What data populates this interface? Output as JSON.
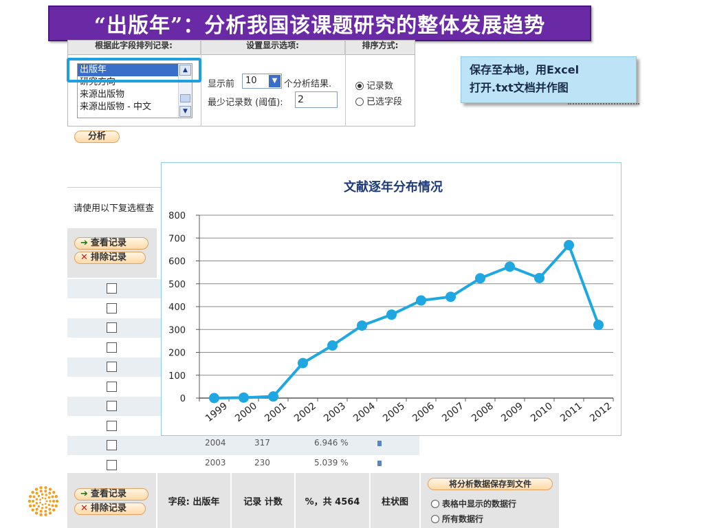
{
  "slide": {
    "title": "“出版年”：分析我国该课题研究的整体发展趋势"
  },
  "panel": {
    "col1_header": "根据此字段排列记录:",
    "col2_header": "设置显示选项:",
    "col3_header": "排序方式:",
    "field_list": [
      "出版年",
      "研究方向",
      "来源出版物",
      "来源出版物 - 中文"
    ],
    "selected_field": "出版年",
    "show_top_prefix": "显示前",
    "show_top_value": "10",
    "show_top_suffix": "个分析结果.",
    "min_records_label": "最少记录数 (阈值):",
    "min_records_value": "2",
    "sort_records": "记录数",
    "sort_field": "已选字段",
    "sort_selected": "记录数",
    "analyze_label": "分析"
  },
  "callout": {
    "line1": "保存至本地，用Excel",
    "line2": "打开.txt文档并作图"
  },
  "table": {
    "hint": "请使用以下复选框查",
    "view_records": "查看记录",
    "exclude_records": "排除记录",
    "visible_rows": [
      {
        "year": "2004",
        "count": "317",
        "percent": "6.946 %"
      },
      {
        "year": "2003",
        "count": "230",
        "percent": "5.039 %"
      }
    ],
    "checkbox_rows": 10
  },
  "footer": {
    "view_records": "查看记录",
    "exclude_records": "排除记录",
    "field_label": "字段: 出版年",
    "count_label": "记录 计数",
    "percent_label": "%，共 4564",
    "bar_label": "柱状图",
    "save_button": "将分析数据保存到文件",
    "save_option_1": "表格中显示的数据行",
    "save_option_2": "所有数据行"
  },
  "chart_data": {
    "type": "line",
    "title": "文献逐年分布情况",
    "x": [
      "1999",
      "2000",
      "2001",
      "2002",
      "2003",
      "2004",
      "2005",
      "2006",
      "2007",
      "2008",
      "2009",
      "2010",
      "2011",
      "2012"
    ],
    "series": [
      {
        "values": [
          0,
          2,
          7,
          153,
          230,
          317,
          365,
          427,
          443,
          524,
          575,
          525,
          669,
          320
        ]
      }
    ],
    "ylim": [
      0,
      800
    ],
    "yticks": [
      0,
      100,
      200,
      300,
      400,
      500,
      600,
      700,
      800
    ],
    "grid": true,
    "color": "#1ea7e1"
  },
  "colors": {
    "title_bg": "#6a2aa6",
    "callout_bg": "#bde3f6",
    "highlight": "#1ea0e0"
  }
}
